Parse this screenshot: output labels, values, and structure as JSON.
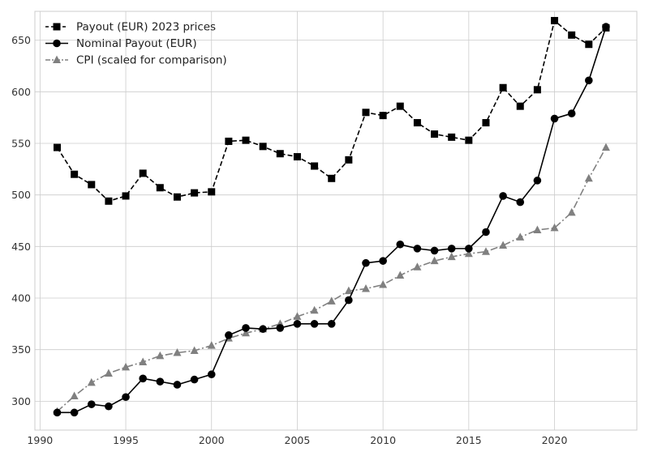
{
  "chart_data": {
    "type": "line",
    "title": "",
    "xlabel": "",
    "ylabel": "",
    "xlim": [
      1989.7,
      2024.8
    ],
    "ylim": [
      272,
      678
    ],
    "grid": true,
    "legend_position": "top-left",
    "x_ticks": [
      1990,
      1995,
      2000,
      2005,
      2010,
      2015,
      2020
    ],
    "y_ticks": [
      300,
      350,
      400,
      450,
      500,
      550,
      600,
      650
    ],
    "x": [
      1991,
      1992,
      1993,
      1994,
      1995,
      1996,
      1997,
      1998,
      1999,
      2000,
      2001,
      2002,
      2003,
      2004,
      2005,
      2006,
      2007,
      2008,
      2009,
      2010,
      2011,
      2012,
      2013,
      2014,
      2015,
      2016,
      2017,
      2018,
      2019,
      2020,
      2021,
      2022,
      2023
    ],
    "series": [
      {
        "name": "Payout (EUR) 2023 prices",
        "color": "#000000",
        "line_style": "dashed",
        "marker": "square",
        "values": [
          546,
          520,
          510,
          494,
          499,
          521,
          507,
          498,
          502,
          503,
          552,
          553,
          547,
          540,
          537,
          528,
          516,
          534,
          580,
          577,
          586,
          570,
          559,
          556,
          553,
          570,
          604,
          586,
          602,
          669,
          655,
          646,
          662
        ]
      },
      {
        "name": "Nominal Payout (EUR)",
        "color": "#000000",
        "line_style": "solid",
        "marker": "circle",
        "values": [
          289,
          289,
          297,
          295,
          304,
          322,
          319,
          316,
          321,
          326,
          364,
          371,
          370,
          371,
          375,
          375,
          375,
          398,
          434,
          436,
          452,
          448,
          446,
          448,
          448,
          464,
          499,
          493,
          514,
          574,
          579,
          611,
          663
        ]
      },
      {
        "name": "CPI (scaled for comparison)",
        "color": "#808080",
        "line_style": "dashdot",
        "marker": "triangle",
        "values": [
          290,
          305,
          318,
          327,
          333,
          338,
          344,
          347,
          349,
          354,
          361,
          366,
          370,
          375,
          382,
          388,
          397,
          407,
          409,
          413,
          422,
          430,
          436,
          440,
          443,
          445,
          451,
          459,
          466,
          468,
          483,
          516,
          546
        ]
      }
    ]
  }
}
